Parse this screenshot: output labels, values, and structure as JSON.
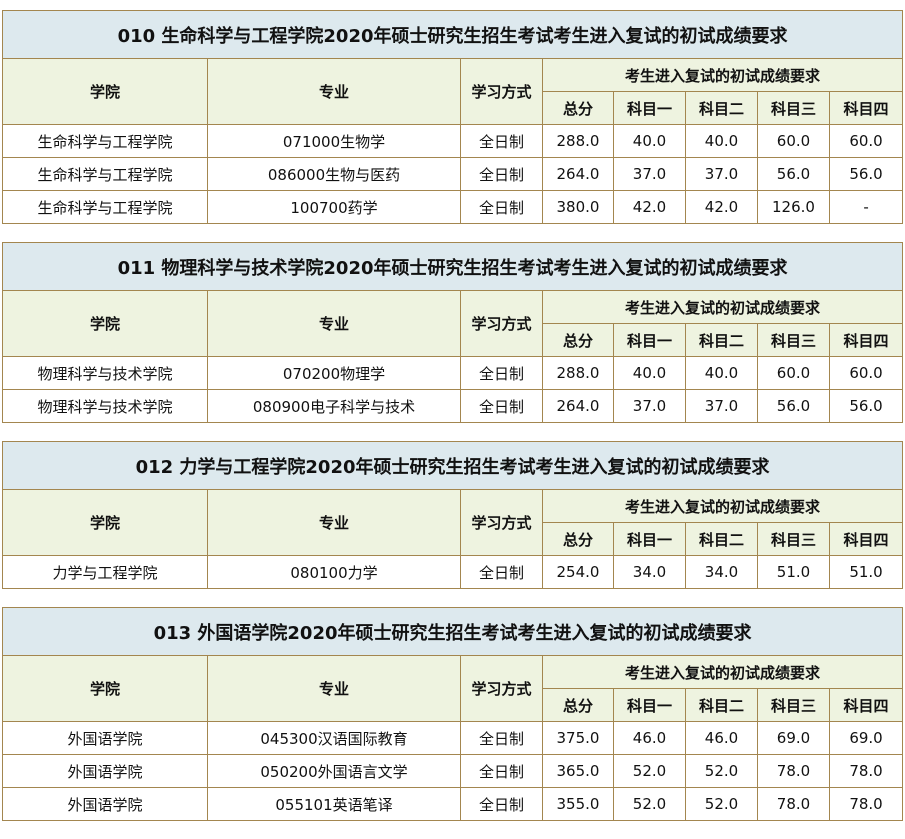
{
  "headers": {
    "college": "学院",
    "major": "专业",
    "mode": "学习方式",
    "requirement": "考生进入复试的初试成绩要求",
    "total": "总分",
    "subject1": "科目一",
    "subject2": "科目二",
    "subject3": "科目三",
    "subject4": "科目四"
  },
  "colors": {
    "title_bg": "#dde9ee",
    "header_bg": "#eef3e0",
    "border": "#a3864f"
  },
  "tables": [
    {
      "title": "010 生命科学与工程学院2020年硕士研究生招生考试考生进入复试的初试成绩要求",
      "rows": [
        [
          "生命科学与工程学院",
          "071000生物学",
          "全日制",
          "288.0",
          "40.0",
          "40.0",
          "60.0",
          "60.0"
        ],
        [
          "生命科学与工程学院",
          "086000生物与医药",
          "全日制",
          "264.0",
          "37.0",
          "37.0",
          "56.0",
          "56.0"
        ],
        [
          "生命科学与工程学院",
          "100700药学",
          "全日制",
          "380.0",
          "42.0",
          "42.0",
          "126.0",
          "-"
        ]
      ]
    },
    {
      "title": "011 物理科学与技术学院2020年硕士研究生招生考试考生进入复试的初试成绩要求",
      "rows": [
        [
          "物理科学与技术学院",
          "070200物理学",
          "全日制",
          "288.0",
          "40.0",
          "40.0",
          "60.0",
          "60.0"
        ],
        [
          "物理科学与技术学院",
          "080900电子科学与技术",
          "全日制",
          "264.0",
          "37.0",
          "37.0",
          "56.0",
          "56.0"
        ]
      ]
    },
    {
      "title": "012 力学与工程学院2020年硕士研究生招生考试考生进入复试的初试成绩要求",
      "rows": [
        [
          "力学与工程学院",
          "080100力学",
          "全日制",
          "254.0",
          "34.0",
          "34.0",
          "51.0",
          "51.0"
        ]
      ]
    },
    {
      "title": "013 外国语学院2020年硕士研究生招生考试考生进入复试的初试成绩要求",
      "rows": [
        [
          "外国语学院",
          "045300汉语国际教育",
          "全日制",
          "375.0",
          "46.0",
          "46.0",
          "69.0",
          "69.0"
        ],
        [
          "外国语学院",
          "050200外国语言文学",
          "全日制",
          "365.0",
          "52.0",
          "52.0",
          "78.0",
          "78.0"
        ],
        [
          "外国语学院",
          "055101英语笔译",
          "全日制",
          "355.0",
          "52.0",
          "52.0",
          "78.0",
          "78.0"
        ]
      ]
    }
  ]
}
